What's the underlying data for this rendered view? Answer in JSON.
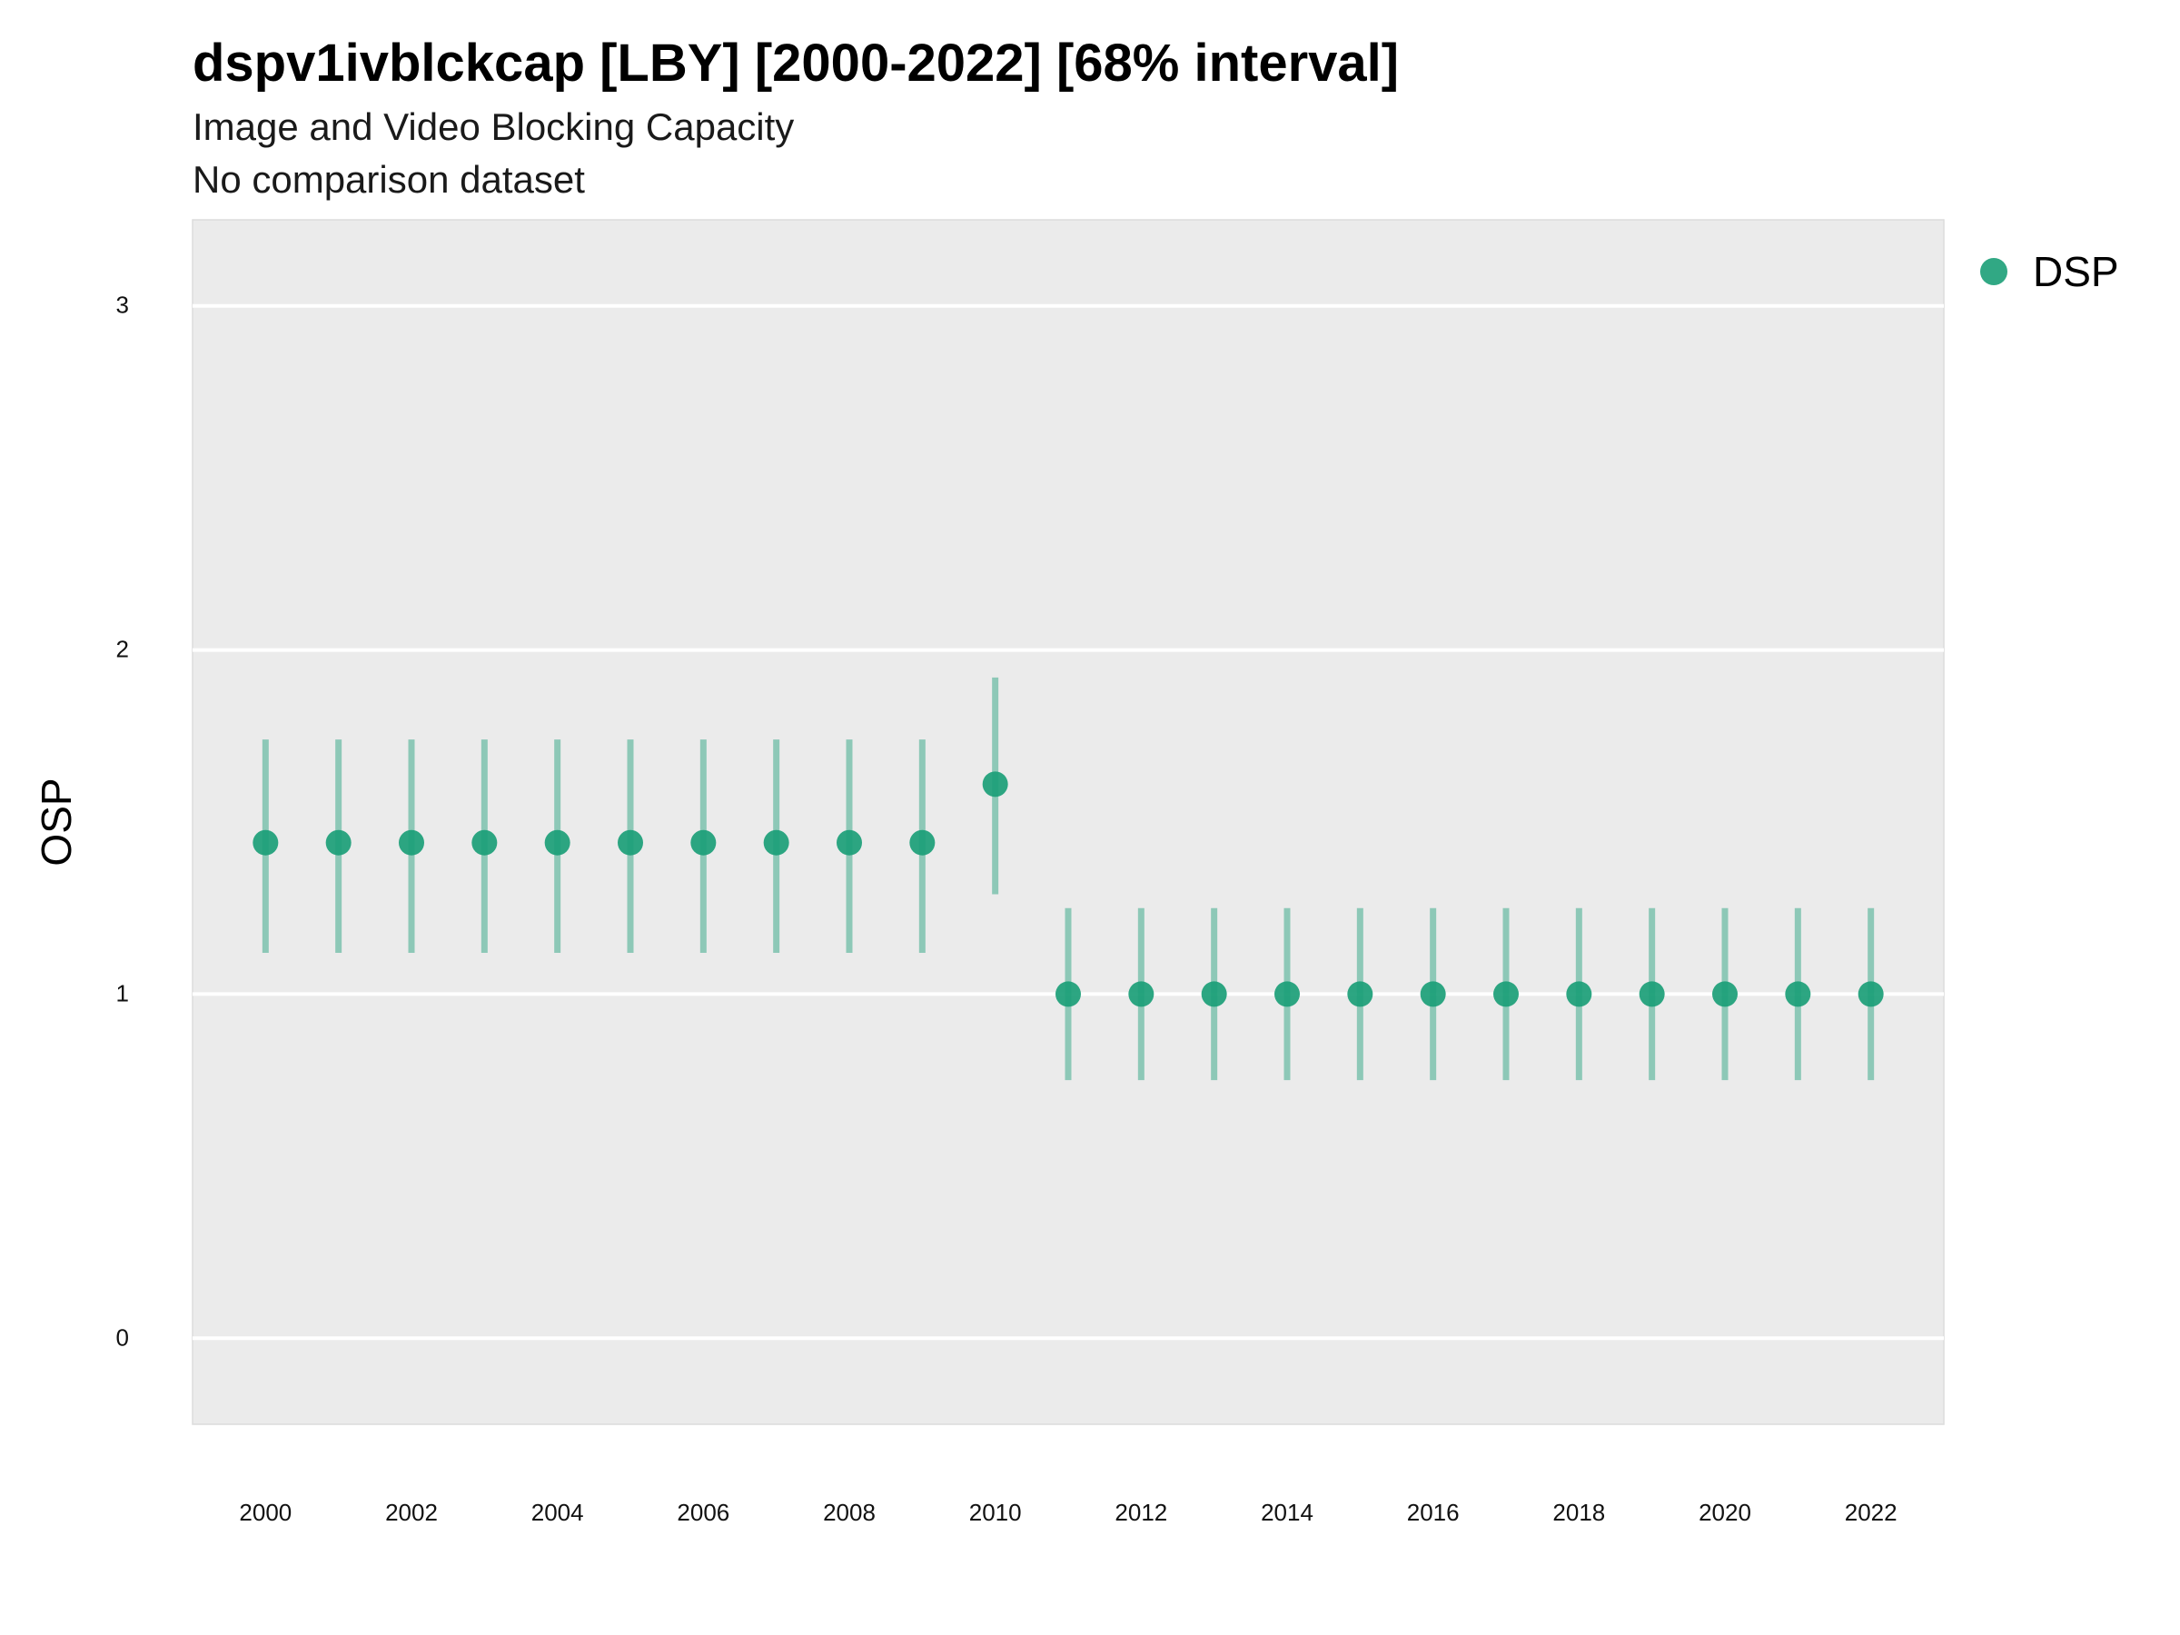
{
  "title": "dspv1ivblckcap [LBY] [2000-2022] [68% interval]",
  "subtitle": "Image and Video Blocking Capacity",
  "caption": "No comparison dataset",
  "legend": {
    "label": "DSP",
    "color": "#1b9e77"
  },
  "chart_data": {
    "type": "scatter",
    "ylabel": "OSP",
    "xlabel": "",
    "ylim": [
      -0.25,
      3.25
    ],
    "xlim": [
      1999,
      2023
    ],
    "y_ticks": [
      0,
      1,
      2,
      3
    ],
    "x_ticks": [
      2000,
      2002,
      2004,
      2006,
      2008,
      2010,
      2012,
      2014,
      2016,
      2018,
      2020,
      2022
    ],
    "grid": true,
    "legend_position": "top-right",
    "series": [
      {
        "name": "DSP",
        "color": "#1b9e77",
        "x": [
          2000,
          2001,
          2002,
          2003,
          2004,
          2005,
          2006,
          2007,
          2008,
          2009,
          2010,
          2011,
          2012,
          2013,
          2014,
          2015,
          2016,
          2017,
          2018,
          2019,
          2020,
          2021,
          2022
        ],
        "y": [
          1.44,
          1.44,
          1.44,
          1.44,
          1.44,
          1.44,
          1.44,
          1.44,
          1.44,
          1.44,
          1.61,
          1.0,
          1.0,
          1.0,
          1.0,
          1.0,
          1.0,
          1.0,
          1.0,
          1.0,
          1.0,
          1.0,
          1.0
        ],
        "lower": [
          1.12,
          1.12,
          1.12,
          1.12,
          1.12,
          1.12,
          1.12,
          1.12,
          1.12,
          1.12,
          1.29,
          0.75,
          0.75,
          0.75,
          0.75,
          0.75,
          0.75,
          0.75,
          0.75,
          0.75,
          0.75,
          0.75,
          0.75
        ],
        "upper": [
          1.74,
          1.74,
          1.74,
          1.74,
          1.74,
          1.74,
          1.74,
          1.74,
          1.74,
          1.74,
          1.92,
          1.25,
          1.25,
          1.25,
          1.25,
          1.25,
          1.25,
          1.25,
          1.25,
          1.25,
          1.25,
          1.25,
          1.25
        ]
      }
    ]
  }
}
